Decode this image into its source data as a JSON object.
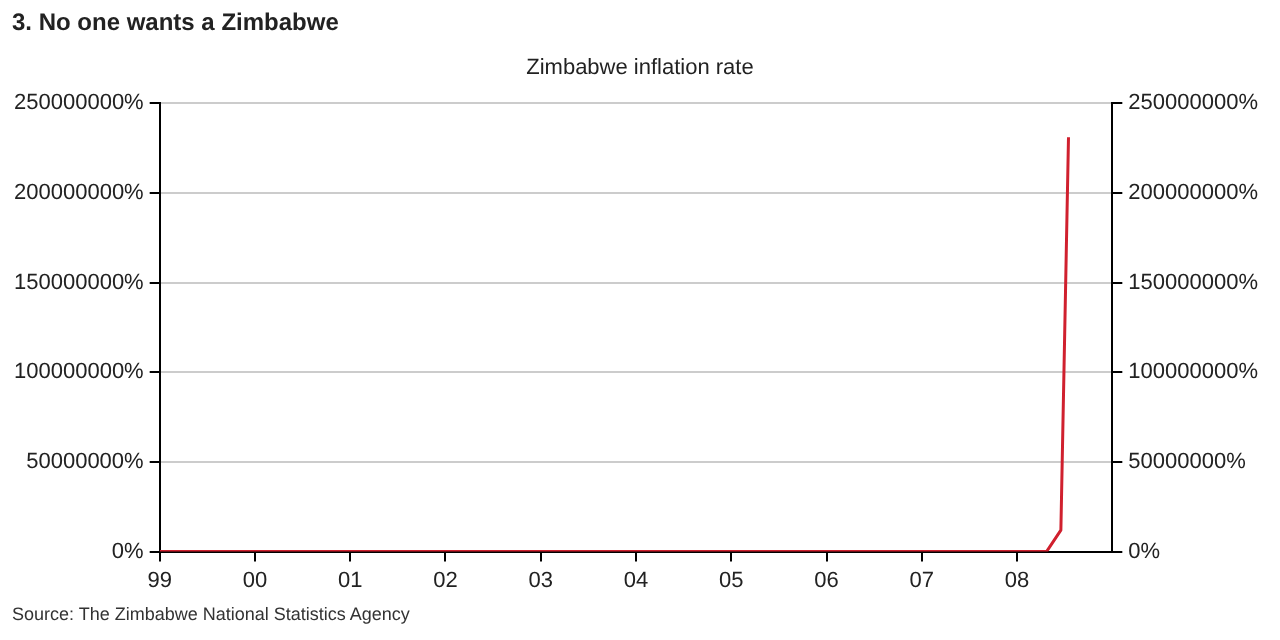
{
  "chart_data": {
    "type": "line",
    "title": "3. No one wants a Zimbabwe",
    "subtitle": "Zimbabwe inflation rate",
    "annotations": [
      "Source: The Zimbabwe National Statistics Agency"
    ],
    "series": [
      {
        "color": "#d0202e",
        "x": [
          1999,
          2008.31,
          2008.46,
          2008.54
        ],
        "values": [
          0,
          0,
          12000000,
          231000000
        ]
      }
    ],
    "xlim": [
      1999,
      2009
    ],
    "xticks": [
      {
        "value": 1999,
        "label": "99"
      },
      {
        "value": 2000,
        "label": "00"
      },
      {
        "value": 2001,
        "label": "01"
      },
      {
        "value": 2002,
        "label": "02"
      },
      {
        "value": 2003,
        "label": "03"
      },
      {
        "value": 2004,
        "label": "04"
      },
      {
        "value": 2005,
        "label": "05"
      },
      {
        "value": 2006,
        "label": "06"
      },
      {
        "value": 2007,
        "label": "07"
      },
      {
        "value": 2008,
        "label": "08"
      }
    ],
    "ylim": [
      0,
      250000000
    ],
    "yticks": [
      {
        "value": 0,
        "label": "0%"
      },
      {
        "value": 50000000,
        "label": "50000000%"
      },
      {
        "value": 100000000,
        "label": "100000000%"
      },
      {
        "value": 150000000,
        "label": "150000000%"
      },
      {
        "value": 200000000,
        "label": "200000000%"
      },
      {
        "value": 250000000,
        "label": "250000000%"
      }
    ],
    "y2lim": [
      0,
      250000000
    ],
    "y2ticks": [
      {
        "value": 0,
        "label": "0%"
      },
      {
        "value": 50000000,
        "label": "50000000%"
      },
      {
        "value": 100000000,
        "label": "100000000%"
      },
      {
        "value": 150000000,
        "label": "150000000%"
      },
      {
        "value": 200000000,
        "label": "200000000%"
      },
      {
        "value": 250000000,
        "label": "250000000%"
      }
    ],
    "grid": "y",
    "legend": false,
    "marker": "none",
    "line_style": "solid"
  }
}
